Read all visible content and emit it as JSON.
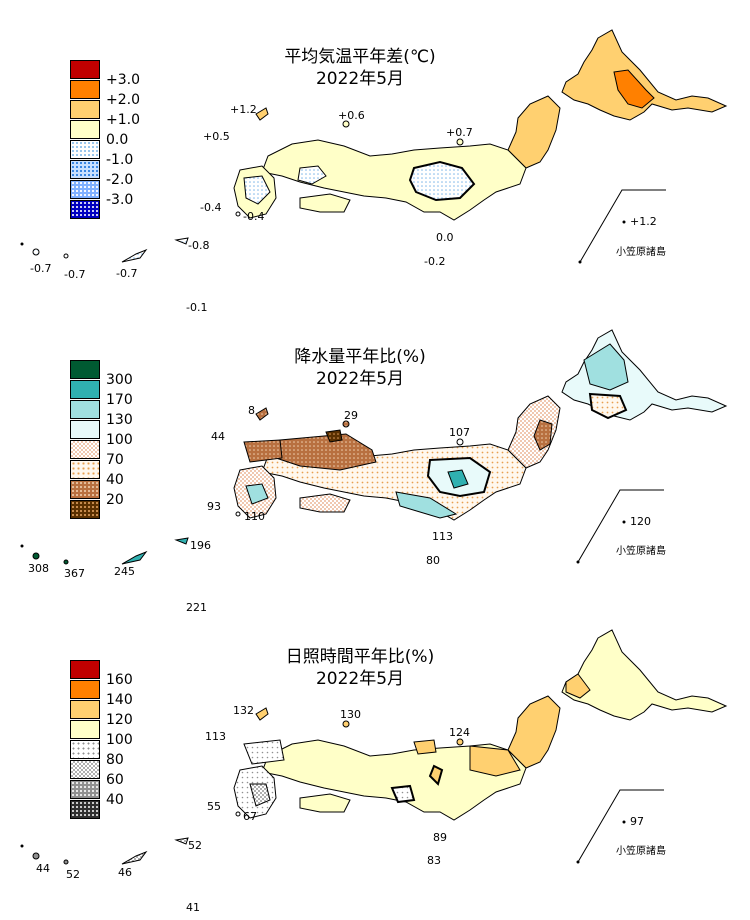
{
  "panels": [
    {
      "id": "temp",
      "title_line1": "平均気温平年差(℃)",
      "title_line2": "2022年5月",
      "legend": [
        {
          "label": "+3.0",
          "color": "#c00000",
          "pattern": "solid"
        },
        {
          "label": "+2.0",
          "color": "#ff8000",
          "pattern": "solid"
        },
        {
          "label": "+1.0",
          "color": "#ffd070",
          "pattern": "solid"
        },
        {
          "label": "0.0",
          "color": "#ffffc8",
          "pattern": "solid"
        },
        {
          "label": "-1.0",
          "color": "#ffffff",
          "pattern": "lightblue-dots"
        },
        {
          "label": "-2.0",
          "color": "#ffffff",
          "pattern": "blue-dots"
        },
        {
          "label": "-3.0",
          "color": "#ffffff",
          "pattern": "darkblue-dots"
        },
        {
          "label": "",
          "color": "#0000c0",
          "pattern": "navy-dots"
        }
      ],
      "values": [
        "+1.2",
        "+0.6",
        "+0.5",
        "+0.7",
        "-0.4",
        "-0.4",
        "0.0",
        "-0.2",
        "-0.7",
        "-0.7",
        "-0.7",
        "-0.8",
        "-0.1",
        "+1.2"
      ],
      "ogasawara": "小笠原諸島"
    },
    {
      "id": "precip",
      "title_line1": "降水量平年比(%)",
      "title_line2": "2022年5月",
      "legend": [
        {
          "label": "300",
          "color": "#005a32",
          "pattern": "solid"
        },
        {
          "label": "170",
          "color": "#30b0b0",
          "pattern": "solid"
        },
        {
          "label": "130",
          "color": "#a0e0e0",
          "pattern": "solid"
        },
        {
          "label": "100",
          "color": "#e8fafa",
          "pattern": "solid"
        },
        {
          "label": "70",
          "color": "#ffffff",
          "pattern": "pink-check"
        },
        {
          "label": "40",
          "color": "#ffffff",
          "pattern": "orange-dots"
        },
        {
          "label": "20",
          "color": "#b07040",
          "pattern": "brown"
        },
        {
          "label": "",
          "color": "#5a3000",
          "pattern": "darkbrown"
        }
      ],
      "values": [
        "8",
        "29",
        "44",
        "107",
        "93",
        "110",
        "113",
        "80",
        "308",
        "367",
        "245",
        "196",
        "221",
        "120"
      ],
      "ogasawara": "小笠原諸島"
    },
    {
      "id": "sun",
      "title_line1": "日照時間平年比(%)",
      "title_line2": "2022年5月",
      "legend": [
        {
          "label": "160",
          "color": "#c00000",
          "pattern": "solid"
        },
        {
          "label": "140",
          "color": "#ff8000",
          "pattern": "solid"
        },
        {
          "label": "120",
          "color": "#ffd070",
          "pattern": "solid"
        },
        {
          "label": "100",
          "color": "#ffffc8",
          "pattern": "solid"
        },
        {
          "label": "80",
          "color": "#ffffff",
          "pattern": "dots"
        },
        {
          "label": "60",
          "color": "#ffffff",
          "pattern": "gray-check"
        },
        {
          "label": "40",
          "color": "#a0a0a0",
          "pattern": "darkgray"
        },
        {
          "label": "",
          "color": "#303030",
          "pattern": "black"
        }
      ],
      "values": [
        "132",
        "130",
        "113",
        "124",
        "55",
        "67",
        "89",
        "83",
        "44",
        "52",
        "46",
        "52",
        "41",
        "97"
      ],
      "ogasawara": "小笠原諸島"
    }
  ]
}
